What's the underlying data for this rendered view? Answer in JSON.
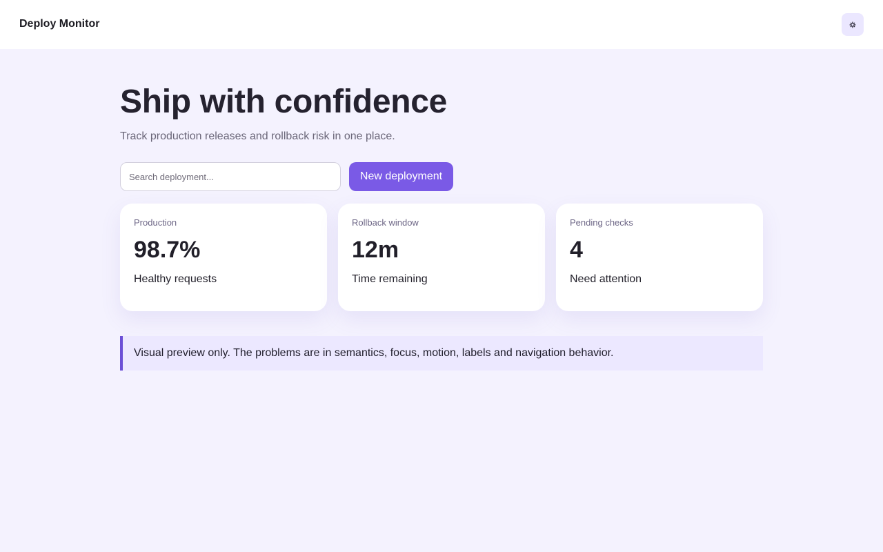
{
  "app": {
    "title": "Deploy Monitor",
    "settings_icon": "gear-icon"
  },
  "hero": {
    "title": "Ship with confidence",
    "subtitle": "Track production releases and rollback risk in one place."
  },
  "search": {
    "placeholder": "Search deployment...",
    "value": ""
  },
  "actions": {
    "new_deployment_label": "New deployment"
  },
  "stats": [
    {
      "label": "Production",
      "value": "98.7%",
      "description": "Healthy requests"
    },
    {
      "label": "Rollback window",
      "value": "12m",
      "description": "Time remaining"
    },
    {
      "label": "Pending checks",
      "value": "4",
      "description": "Need attention"
    }
  ],
  "notice": {
    "text": "Visual preview only. The problems are in semantics, focus, motion, labels and navigation behavior."
  },
  "colors": {
    "accent": "#7a5ae6",
    "page_background": "#f4f2fe",
    "notice_background": "#ece8ff",
    "notice_border": "#6b4fd6",
    "settings_button_background": "#ebe7ff"
  }
}
